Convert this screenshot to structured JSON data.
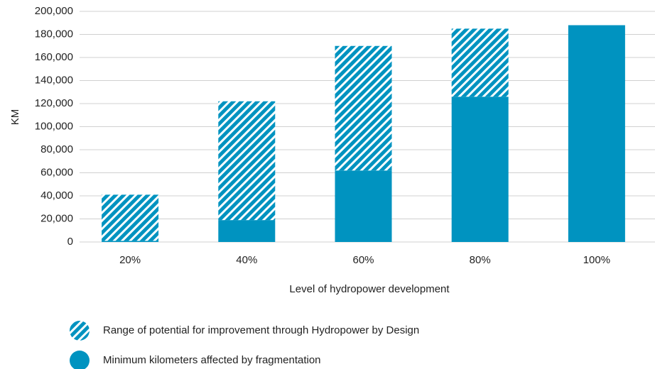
{
  "chart_data": {
    "type": "stacked_bar",
    "y_label": "KM",
    "x_label": "Level of hydropower development",
    "categories": [
      "20%",
      "40%",
      "60%",
      "80%",
      "100%"
    ],
    "series": [
      {
        "name": "Minimum kilometers affected by fragmentation",
        "color": "#0093c0",
        "pattern": "solid",
        "values": [
          1000,
          19000,
          62000,
          126000,
          188000
        ]
      },
      {
        "name": "Range of potential for improvement through Hydropower by Design",
        "color": "#0093c0",
        "pattern": "hatch",
        "values": [
          40000,
          103000,
          108000,
          59000,
          0
        ]
      }
    ],
    "legend_order": [
      1,
      0
    ],
    "ylim": [
      0,
      200000
    ],
    "yticks": [
      0,
      {
        "value": 20000,
        "label": "20,000"
      },
      {
        "value": 40000,
        "label": "40,000"
      },
      {
        "value": 60000,
        "label": "60,000"
      },
      {
        "value": 80000,
        "label": "80,000"
      },
      {
        "value": 100000,
        "label": "100,000"
      },
      {
        "value": 120000,
        "label": "120,000"
      },
      {
        "value": 140000,
        "label": "140,000"
      },
      {
        "value": 160000,
        "label": "160,000"
      },
      {
        "value": 180000,
        "label": "180,000"
      },
      {
        "value": 200000,
        "label": "200,000"
      }
    ],
    "grid": true
  }
}
